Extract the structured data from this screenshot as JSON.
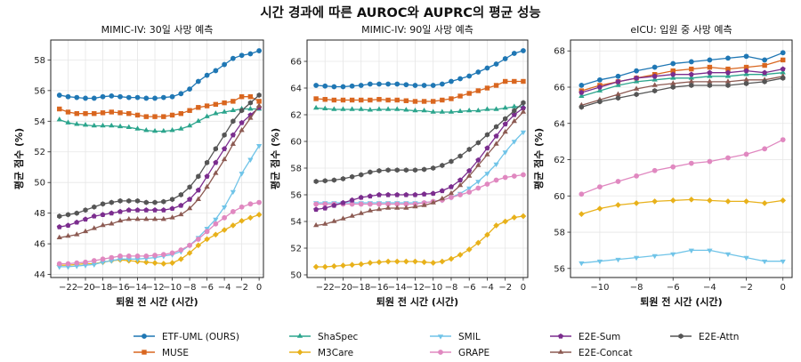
{
  "figure": {
    "title": "시간 경과에 따른 AUROC와 AUPRC의 평균 성능"
  },
  "legend": [
    {
      "name": "ETF-UML (OURS)",
      "color": "#1f77b4",
      "marker": "circle"
    },
    {
      "name": "MUSE",
      "color": "#d9661f",
      "marker": "square"
    },
    {
      "name": "ShaSpec",
      "color": "#2ca58d",
      "marker": "triangle-up"
    },
    {
      "name": "M3Care",
      "color": "#e8b11a",
      "marker": "diamond"
    },
    {
      "name": "SMIL",
      "color": "#70c4e8",
      "marker": "triangle-down"
    },
    {
      "name": "GRAPE",
      "color": "#e088c0",
      "marker": "circle"
    },
    {
      "name": "E2E-Sum",
      "color": "#7b2d8e",
      "marker": "pentagon"
    },
    {
      "name": "E2E-Concat",
      "color": "#8c5a52",
      "marker": "triangle-up"
    },
    {
      "name": "E2E-Attn",
      "color": "#555555",
      "marker": "hexagon"
    }
  ],
  "chart_data": [
    {
      "type": "line",
      "title": "MIMIC-IV: 30일 사망 예측",
      "xlabel": "퇴원 전 시간 (시간)",
      "ylabel": "평균 점수 (%)",
      "xlim": [
        -24,
        0.5
      ],
      "ylim": [
        43.8,
        59.3
      ],
      "x": [
        -23,
        -22,
        -21,
        -20,
        -19,
        -18,
        -17,
        -16,
        -15,
        -14,
        -13,
        -12,
        -11,
        -10,
        -9,
        -8,
        -7,
        -6,
        -5,
        -4,
        -3,
        -2,
        -1,
        0
      ],
      "xticks": [
        -22,
        -20,
        -18,
        -16,
        -14,
        -12,
        -10,
        -8,
        -6,
        -4,
        -2,
        0
      ],
      "xtick_labels": [
        "−22",
        "−20",
        "−18",
        "−16",
        "−14",
        "−12",
        "−10",
        "−8",
        "−6",
        "−4",
        "−2",
        "0"
      ],
      "yticks": [
        44,
        46,
        48,
        50,
        52,
        54,
        56,
        58
      ],
      "ytick_labels": [
        "44",
        "46",
        "48",
        "50",
        "52",
        "54",
        "56",
        "58"
      ],
      "series": [
        {
          "name": "ETF-UML (OURS)",
          "values": [
            55.7,
            55.6,
            55.55,
            55.5,
            55.5,
            55.6,
            55.65,
            55.6,
            55.55,
            55.55,
            55.5,
            55.5,
            55.55,
            55.6,
            55.8,
            56.1,
            56.6,
            57.0,
            57.3,
            57.7,
            58.1,
            58.3,
            58.4,
            58.6
          ]
        },
        {
          "name": "MUSE",
          "values": [
            54.8,
            54.6,
            54.5,
            54.5,
            54.5,
            54.55,
            54.6,
            54.55,
            54.5,
            54.4,
            54.3,
            54.3,
            54.3,
            54.4,
            54.5,
            54.7,
            54.9,
            55.0,
            55.1,
            55.2,
            55.3,
            55.6,
            55.6,
            55.3
          ]
        },
        {
          "name": "ShaSpec",
          "values": [
            54.1,
            53.9,
            53.8,
            53.75,
            53.7,
            53.7,
            53.7,
            53.65,
            53.6,
            53.5,
            53.4,
            53.35,
            53.35,
            53.4,
            53.5,
            53.7,
            54.0,
            54.3,
            54.5,
            54.6,
            54.7,
            54.8,
            54.8,
            54.8
          ]
        },
        {
          "name": "M3Care",
          "values": [
            44.6,
            44.6,
            44.65,
            44.7,
            44.7,
            44.8,
            44.9,
            44.95,
            44.9,
            44.85,
            44.8,
            44.75,
            44.7,
            44.75,
            45.0,
            45.4,
            45.9,
            46.3,
            46.6,
            46.9,
            47.2,
            47.5,
            47.7,
            47.9
          ]
        },
        {
          "name": "SMIL",
          "values": [
            44.5,
            44.5,
            44.55,
            44.6,
            44.65,
            44.8,
            44.9,
            45.0,
            45.0,
            45.0,
            45.05,
            45.1,
            45.2,
            45.3,
            45.5,
            45.9,
            46.4,
            47.0,
            47.6,
            48.4,
            49.4,
            50.6,
            51.5,
            52.4
          ]
        },
        {
          "name": "GRAPE",
          "values": [
            44.7,
            44.7,
            44.75,
            44.8,
            44.9,
            45.0,
            45.1,
            45.2,
            45.2,
            45.2,
            45.2,
            45.25,
            45.3,
            45.4,
            45.6,
            45.9,
            46.3,
            46.8,
            47.3,
            47.7,
            48.1,
            48.4,
            48.6,
            48.7
          ]
        },
        {
          "name": "E2E-Sum",
          "values": [
            47.1,
            47.2,
            47.4,
            47.6,
            47.8,
            47.9,
            48.0,
            48.1,
            48.2,
            48.2,
            48.2,
            48.2,
            48.2,
            48.3,
            48.5,
            48.9,
            49.5,
            50.4,
            51.3,
            52.2,
            53.1,
            53.9,
            54.4,
            54.9
          ]
        },
        {
          "name": "E2E-Concat",
          "values": [
            46.4,
            46.5,
            46.6,
            46.8,
            47.0,
            47.2,
            47.3,
            47.5,
            47.6,
            47.6,
            47.6,
            47.6,
            47.6,
            47.7,
            47.9,
            48.3,
            48.9,
            49.7,
            50.6,
            51.5,
            52.5,
            53.4,
            54.2,
            55.0
          ]
        },
        {
          "name": "E2E-Attn",
          "values": [
            47.8,
            47.9,
            48.0,
            48.2,
            48.4,
            48.6,
            48.7,
            48.8,
            48.8,
            48.8,
            48.7,
            48.7,
            48.75,
            48.9,
            49.2,
            49.7,
            50.4,
            51.3,
            52.2,
            53.1,
            54.0,
            54.7,
            55.2,
            55.7
          ]
        }
      ]
    },
    {
      "type": "line",
      "title": "MIMIC-IV: 90일 사망 예측",
      "xlabel": "퇴원 전 시간 (시간)",
      "ylabel": "평균 점수 (%)",
      "xlim": [
        -24,
        0.5
      ],
      "ylim": [
        49.8,
        67.6
      ],
      "x": [
        -23,
        -22,
        -21,
        -20,
        -19,
        -18,
        -17,
        -16,
        -15,
        -14,
        -13,
        -12,
        -11,
        -10,
        -9,
        -8,
        -7,
        -6,
        -5,
        -4,
        -3,
        -2,
        -1,
        0
      ],
      "xticks": [
        -22,
        -20,
        -18,
        -16,
        -14,
        -12,
        -10,
        -8,
        -6,
        -4,
        -2,
        0
      ],
      "xtick_labels": [
        "−22",
        "−20",
        "−18",
        "−16",
        "−14",
        "−12",
        "−10",
        "−8",
        "−6",
        "−4",
        "−2",
        "0"
      ],
      "yticks": [
        50,
        52,
        54,
        56,
        58,
        60,
        62,
        64,
        66
      ],
      "ytick_labels": [
        "50",
        "52",
        "54",
        "56",
        "58",
        "60",
        "62",
        "64",
        "66"
      ],
      "series": [
        {
          "name": "ETF-UML (OURS)",
          "values": [
            64.2,
            64.15,
            64.1,
            64.1,
            64.15,
            64.2,
            64.3,
            64.3,
            64.3,
            64.3,
            64.25,
            64.2,
            64.2,
            64.2,
            64.3,
            64.5,
            64.7,
            64.9,
            65.2,
            65.5,
            65.8,
            66.2,
            66.6,
            66.8
          ]
        },
        {
          "name": "MUSE",
          "values": [
            63.2,
            63.15,
            63.1,
            63.1,
            63.1,
            63.1,
            63.1,
            63.15,
            63.1,
            63.1,
            63.05,
            63.0,
            63.0,
            63.0,
            63.1,
            63.2,
            63.4,
            63.6,
            63.8,
            64.0,
            64.2,
            64.5,
            64.5,
            64.5
          ]
        },
        {
          "name": "ShaSpec",
          "values": [
            62.5,
            62.45,
            62.4,
            62.4,
            62.4,
            62.4,
            62.35,
            62.4,
            62.4,
            62.4,
            62.35,
            62.3,
            62.3,
            62.2,
            62.2,
            62.2,
            62.25,
            62.3,
            62.3,
            62.4,
            62.4,
            62.5,
            62.6,
            62.6
          ]
        },
        {
          "name": "M3Care",
          "values": [
            50.6,
            50.6,
            50.65,
            50.7,
            50.75,
            50.8,
            50.9,
            50.95,
            51.0,
            51.0,
            51.0,
            51.0,
            50.95,
            50.9,
            51.0,
            51.2,
            51.5,
            51.9,
            52.4,
            53.0,
            53.7,
            54.0,
            54.3,
            54.4
          ]
        },
        {
          "name": "SMIL",
          "values": [
            55.4,
            55.4,
            55.4,
            55.4,
            55.4,
            55.4,
            55.4,
            55.4,
            55.4,
            55.4,
            55.4,
            55.4,
            55.4,
            55.5,
            55.6,
            55.8,
            56.1,
            56.5,
            57.0,
            57.6,
            58.3,
            59.2,
            60.0,
            60.7
          ]
        },
        {
          "name": "GRAPE",
          "values": [
            55.3,
            55.3,
            55.3,
            55.3,
            55.3,
            55.3,
            55.3,
            55.3,
            55.3,
            55.3,
            55.3,
            55.3,
            55.4,
            55.5,
            55.6,
            55.8,
            56.0,
            56.2,
            56.5,
            56.8,
            57.1,
            57.3,
            57.4,
            57.5
          ]
        },
        {
          "name": "E2E-Sum",
          "values": [
            54.9,
            55.0,
            55.2,
            55.4,
            55.6,
            55.8,
            55.9,
            56.0,
            56.0,
            56.0,
            56.0,
            56.0,
            56.05,
            56.1,
            56.3,
            56.6,
            57.1,
            57.8,
            58.6,
            59.5,
            60.4,
            61.3,
            62.0,
            62.5
          ]
        },
        {
          "name": "E2E-Concat",
          "values": [
            53.7,
            53.8,
            54.0,
            54.2,
            54.4,
            54.6,
            54.8,
            54.9,
            55.0,
            55.0,
            55.0,
            55.1,
            55.2,
            55.4,
            55.7,
            56.1,
            56.7,
            57.4,
            58.2,
            59.0,
            59.8,
            60.7,
            61.5,
            62.2
          ]
        },
        {
          "name": "E2E-Attn",
          "values": [
            57.0,
            57.05,
            57.1,
            57.2,
            57.35,
            57.5,
            57.7,
            57.8,
            57.85,
            57.85,
            57.85,
            57.85,
            57.9,
            58.0,
            58.2,
            58.5,
            58.9,
            59.4,
            59.9,
            60.5,
            61.1,
            61.7,
            62.3,
            62.9
          ]
        }
      ]
    },
    {
      "type": "line",
      "title": "eICU: 입원 중 사망 예측",
      "xlabel": "퇴원 전 시간 (시간)",
      "ylabel": "평균 점수 (%)",
      "xlim": [
        -11.6,
        0.5
      ],
      "ylim": [
        55.5,
        68.6
      ],
      "x": [
        -11,
        -10,
        -9,
        -8,
        -7,
        -6,
        -5,
        -4,
        -3,
        -2,
        -1,
        0
      ],
      "xticks": [
        -10,
        -8,
        -6,
        -4,
        -2,
        0
      ],
      "xtick_labels": [
        "−10",
        "−8",
        "−6",
        "−4",
        "−2",
        "0"
      ],
      "yticks": [
        56,
        58,
        60,
        62,
        64,
        66,
        68
      ],
      "ytick_labels": [
        "56",
        "58",
        "60",
        "62",
        "64",
        "66",
        "68"
      ],
      "series": [
        {
          "name": "ETF-UML (OURS)",
          "values": [
            66.1,
            66.4,
            66.6,
            66.9,
            67.1,
            67.3,
            67.4,
            67.5,
            67.6,
            67.7,
            67.5,
            67.9
          ]
        },
        {
          "name": "MUSE",
          "values": [
            65.8,
            66.1,
            66.3,
            66.5,
            66.7,
            66.9,
            67.0,
            67.1,
            67.0,
            67.1,
            67.2,
            67.5
          ]
        },
        {
          "name": "ShaSpec",
          "values": [
            65.5,
            65.8,
            66.1,
            66.3,
            66.4,
            66.5,
            66.5,
            66.6,
            66.6,
            66.7,
            66.7,
            66.8
          ]
        },
        {
          "name": "M3Care",
          "values": [
            59.0,
            59.3,
            59.5,
            59.6,
            59.7,
            59.75,
            59.8,
            59.75,
            59.7,
            59.7,
            59.6,
            59.75
          ]
        },
        {
          "name": "SMIL",
          "values": [
            56.3,
            56.4,
            56.5,
            56.6,
            56.7,
            56.8,
            57.0,
            57.0,
            56.8,
            56.6,
            56.4,
            56.4
          ]
        },
        {
          "name": "GRAPE",
          "values": [
            60.1,
            60.5,
            60.8,
            61.1,
            61.4,
            61.6,
            61.8,
            61.9,
            62.1,
            62.3,
            62.6,
            63.1
          ]
        },
        {
          "name": "E2E-Sum",
          "values": [
            65.7,
            66.0,
            66.3,
            66.5,
            66.6,
            66.7,
            66.7,
            66.8,
            66.8,
            66.9,
            66.8,
            67.0
          ]
        },
        {
          "name": "E2E-Concat",
          "values": [
            65.0,
            65.3,
            65.6,
            65.9,
            66.1,
            66.2,
            66.3,
            66.3,
            66.3,
            66.4,
            66.4,
            66.6
          ]
        },
        {
          "name": "E2E-Attn",
          "values": [
            64.9,
            65.2,
            65.4,
            65.6,
            65.8,
            66.0,
            66.1,
            66.1,
            66.1,
            66.2,
            66.3,
            66.5
          ]
        }
      ]
    }
  ]
}
